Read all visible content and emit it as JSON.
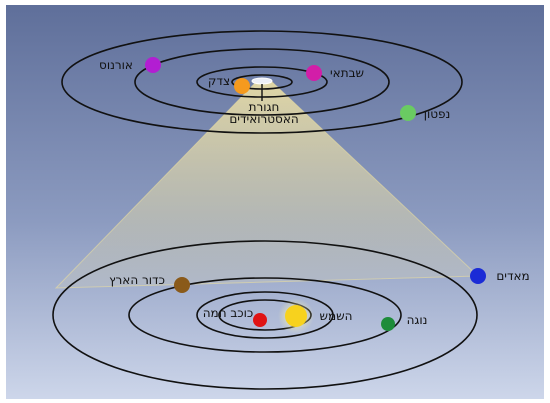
{
  "colors": {
    "bg_top": "#5f6f9a",
    "bg_bottom": "#cdd6ea",
    "beam": "#f4e6a6",
    "sun": "#f7d21e",
    "mercury": "#e01414",
    "venus": "#1e8c3a",
    "earth": "#8a5a1a",
    "mars": "#1a2bd6",
    "jupiter": "#f59a1e",
    "saturn": "#d21ea8",
    "uranus": "#b21ed2",
    "neptune": "#6acb62"
  },
  "inner_system": {
    "sun": "השמש",
    "mercury": "כוכב חמה",
    "venus": "נוגה",
    "earth": "כדור הארץ",
    "mars": "מאדים"
  },
  "outer_system": {
    "jupiter": "צדק",
    "saturn": "שבתאי",
    "uranus": "אורנוס",
    "neptune": "נפטון",
    "asteroid_belt_line1": "חגורת",
    "asteroid_belt_line2": "האסטרואידים"
  }
}
